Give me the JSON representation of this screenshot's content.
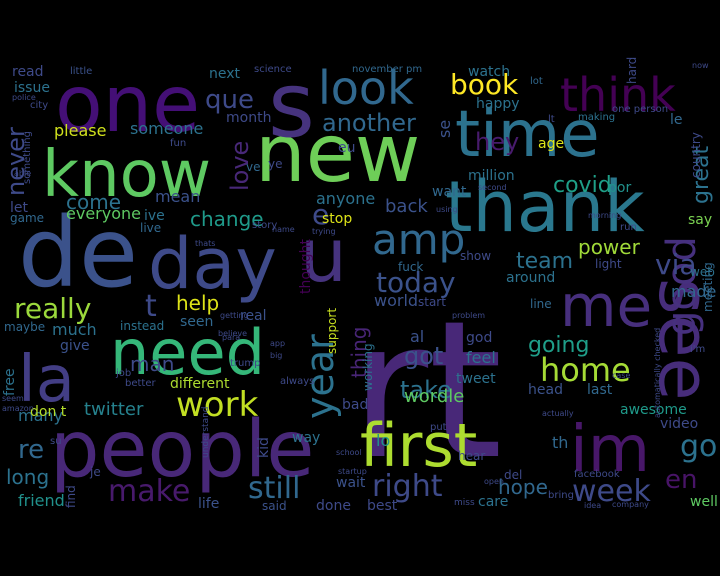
{
  "image": {
    "kind": "word cloud",
    "background": "#000000",
    "palette": [
      "#440154",
      "#472f7d",
      "#3b528b",
      "#2c728e",
      "#21918c",
      "#28ae80",
      "#5ec962",
      "#addc30",
      "#fde725"
    ]
  },
  "words": [
    {
      "text": "rt",
      "color": "#482878"
    },
    {
      "text": "new",
      "color": "#6ece58"
    },
    {
      "text": "de",
      "color": "#3b528b"
    },
    {
      "text": "people",
      "color": "#482878"
    },
    {
      "text": "time",
      "color": "#2c728e"
    },
    {
      "text": "one",
      "color": "#440f76"
    },
    {
      "text": "thank",
      "color": "#2a788e"
    },
    {
      "text": "know",
      "color": "#5ec962"
    },
    {
      "text": "day",
      "color": "#3e4a89"
    },
    {
      "text": "need",
      "color": "#35b779"
    },
    {
      "text": "see",
      "color": "#472d7b"
    },
    {
      "text": "first",
      "color": "#addc30"
    },
    {
      "text": "im",
      "color": "#481769"
    },
    {
      "text": "la",
      "color": "#433e85"
    },
    {
      "text": "me",
      "color": "#472f7d"
    },
    {
      "text": "s",
      "color": "#46337e"
    },
    {
      "text": "u",
      "color": "#46337e"
    },
    {
      "text": "look",
      "color": "#31688e"
    },
    {
      "text": "think",
      "color": "#440154"
    },
    {
      "text": "amp",
      "color": "#31688e"
    },
    {
      "text": "good",
      "color": "#46307e"
    },
    {
      "text": "year",
      "color": "#2c728e"
    },
    {
      "text": "work",
      "color": "#c2df23"
    },
    {
      "text": "make",
      "color": "#481a6c"
    },
    {
      "text": "week",
      "color": "#3e4a89"
    },
    {
      "text": "right",
      "color": "#3e4a89"
    },
    {
      "text": "home",
      "color": "#a5db36"
    },
    {
      "text": "today",
      "color": "#3b528b"
    },
    {
      "text": "really",
      "color": "#9bd93c"
    },
    {
      "text": "still",
      "color": "#31688e"
    },
    {
      "text": "book",
      "color": "#fde725"
    },
    {
      "text": "via",
      "color": "#3e4a89"
    },
    {
      "text": "go",
      "color": "#2c728e"
    },
    {
      "text": "en",
      "color": "#481467"
    },
    {
      "text": "que",
      "color": "#3e4a89"
    },
    {
      "text": "another",
      "color": "#31688e"
    },
    {
      "text": "never",
      "color": "#3e4a89"
    },
    {
      "text": "love",
      "color": "#482878"
    },
    {
      "text": "take",
      "color": "#2c728e"
    },
    {
      "text": "got",
      "color": "#3b528b"
    },
    {
      "text": "going",
      "color": "#1f9e89"
    },
    {
      "text": "team",
      "color": "#2c728e"
    },
    {
      "text": "covid",
      "color": "#1fa088"
    },
    {
      "text": "hey",
      "color": "#481b6d"
    },
    {
      "text": "great",
      "color": "#2c728e"
    },
    {
      "text": "change",
      "color": "#1f9a8a"
    },
    {
      "text": "come",
      "color": "#2c728e"
    },
    {
      "text": "thing",
      "color": "#482576"
    },
    {
      "text": "man",
      "color": "#3e4a89"
    },
    {
      "text": "help",
      "color": "#dde318"
    },
    {
      "text": "power",
      "color": "#a0da39"
    },
    {
      "text": "twitter",
      "color": "#26828e"
    },
    {
      "text": "hope",
      "color": "#31688e"
    },
    {
      "text": "t",
      "color": "#3e4a89"
    },
    {
      "text": "e",
      "color": "#3e4a89"
    },
    {
      "text": "please",
      "color": "#d0e11c"
    },
    {
      "text": "someone",
      "color": "#2c728e"
    },
    {
      "text": "next",
      "color": "#2c728e"
    },
    {
      "text": "month",
      "color": "#3e4a89"
    },
    {
      "text": "mean",
      "color": "#3b528b"
    },
    {
      "text": "everyone",
      "color": "#5ec962"
    },
    {
      "text": "ive",
      "color": "#2c728e"
    },
    {
      "text": "back",
      "color": "#3b528b"
    },
    {
      "text": "anyone",
      "color": "#2c728e"
    },
    {
      "text": "world",
      "color": "#3b528b"
    },
    {
      "text": "tweet",
      "color": "#2c728e"
    },
    {
      "text": "wordle",
      "color": "#5ec962"
    },
    {
      "text": "feel",
      "color": "#2c728e"
    },
    {
      "text": "around",
      "color": "#2c728e"
    },
    {
      "text": "made",
      "color": "#31688e"
    },
    {
      "text": "say",
      "color": "#7ad151"
    },
    {
      "text": "last",
      "color": "#31688e"
    },
    {
      "text": "head",
      "color": "#3b528b"
    },
    {
      "text": "awesome",
      "color": "#1f9a8a"
    },
    {
      "text": "video",
      "color": "#3e4a89"
    },
    {
      "text": "re",
      "color": "#31688e"
    },
    {
      "text": "long",
      "color": "#2c728e"
    },
    {
      "text": "friend",
      "color": "#21918c"
    },
    {
      "text": "many",
      "color": "#2c728e"
    },
    {
      "text": "free",
      "color": "#2c728e"
    },
    {
      "text": "don t",
      "color": "#b5de2b"
    },
    {
      "text": "give",
      "color": "#3b528b"
    },
    {
      "text": "much",
      "color": "#2c728e"
    },
    {
      "text": "maybe",
      "color": "#31688e"
    },
    {
      "text": "instead",
      "color": "#2c728e"
    },
    {
      "text": "seen",
      "color": "#31688e"
    },
    {
      "text": "real",
      "color": "#3b528b"
    },
    {
      "text": "different",
      "color": "#addc30"
    },
    {
      "text": "let",
      "color": "#3e4a89"
    },
    {
      "text": "game",
      "color": "#31688e"
    },
    {
      "text": "live",
      "color": "#31688e"
    },
    {
      "text": "lo",
      "color": "#21918c"
    },
    {
      "text": "th",
      "color": "#31688e"
    },
    {
      "text": "al",
      "color": "#3b528b"
    },
    {
      "text": "god",
      "color": "#3e4a89"
    },
    {
      "text": "fuck",
      "color": "#31688e"
    },
    {
      "text": "show",
      "color": "#3e4a89"
    },
    {
      "text": "light",
      "color": "#3e4a89"
    },
    {
      "text": "line",
      "color": "#31688e"
    },
    {
      "text": "start",
      "color": "#3e4a89"
    },
    {
      "text": "thought",
      "color": "#440154"
    },
    {
      "text": "support",
      "color": "#c8e020"
    },
    {
      "text": "working",
      "color": "#2c728e"
    },
    {
      "text": "bad",
      "color": "#3e4a89"
    },
    {
      "text": "stop",
      "color": "#dde318"
    },
    {
      "text": "wait",
      "color": "#3b528b"
    },
    {
      "text": "done",
      "color": "#3e4a89"
    },
    {
      "text": "best",
      "color": "#3e4a89"
    },
    {
      "text": "care",
      "color": "#2c728e"
    },
    {
      "text": "well",
      "color": "#5ec962"
    },
    {
      "text": "kid",
      "color": "#3e4a89"
    },
    {
      "text": "way",
      "color": "#2c728e"
    },
    {
      "text": "life",
      "color": "#3b528b"
    },
    {
      "text": "said",
      "color": "#3b528b"
    },
    {
      "text": "find",
      "color": "#3e4a89"
    },
    {
      "text": "je",
      "color": "#3e4a89"
    },
    {
      "text": "watch",
      "color": "#2c728e"
    },
    {
      "text": "happy",
      "color": "#2c728e"
    },
    {
      "text": "age",
      "color": "#dde318"
    },
    {
      "text": "million",
      "color": "#2c728e"
    },
    {
      "text": "want",
      "color": "#31688e"
    },
    {
      "text": "por",
      "color": "#21918c"
    },
    {
      "text": "eu",
      "color": "#3e4a89"
    },
    {
      "text": "se",
      "color": "#3b528b"
    },
    {
      "text": "le",
      "color": "#31688e"
    },
    {
      "text": "country",
      "color": "#3e4a89"
    },
    {
      "text": "meeting",
      "color": "#31688e"
    },
    {
      "text": "web",
      "color": "#2c728e"
    },
    {
      "text": "hard",
      "color": "#3e4a89"
    },
    {
      "text": "read",
      "color": "#3e4a89"
    },
    {
      "text": "issue",
      "color": "#2c728e"
    },
    {
      "text": "little",
      "color": "#3b528b"
    },
    {
      "text": "science",
      "color": "#3e4a89"
    },
    {
      "text": "november pm",
      "color": "#31688e"
    },
    {
      "text": "one person",
      "color": "#3e4a89"
    },
    {
      "text": "making",
      "color": "#2c728e"
    },
    {
      "text": "lt",
      "color": "#3e4a89"
    },
    {
      "text": "lot",
      "color": "#31688e"
    },
    {
      "text": "city",
      "color": "#3e4a89"
    },
    {
      "text": "something",
      "color": "#3e4a89"
    },
    {
      "text": "able",
      "color": "#3e4a89"
    },
    {
      "text": "fun",
      "color": "#3e4a89"
    },
    {
      "text": "story",
      "color": "#3e4a89"
    },
    {
      "text": "ve",
      "color": "#31688e"
    },
    {
      "text": "su",
      "color": "#3e4a89"
    },
    {
      "text": "better",
      "color": "#3e4a89"
    },
    {
      "text": "job",
      "color": "#3e4a89"
    },
    {
      "text": "getting",
      "color": "#3e4a89"
    },
    {
      "text": "believe",
      "color": "#3e4a89"
    },
    {
      "text": "always",
      "color": "#3e4a89"
    },
    {
      "text": "trump",
      "color": "#3e4a89"
    },
    {
      "text": "understand",
      "color": "#3e4a89"
    },
    {
      "text": "school",
      "color": "#3e4a89"
    },
    {
      "text": "startup",
      "color": "#3e4a89"
    },
    {
      "text": "put",
      "color": "#3e4a89"
    },
    {
      "text": "hear",
      "color": "#3e4a89"
    },
    {
      "text": "del",
      "color": "#3e4a89"
    },
    {
      "text": "open",
      "color": "#3e4a89"
    },
    {
      "text": "miss",
      "color": "#3e4a89"
    },
    {
      "text": "bring",
      "color": "#3e4a89"
    },
    {
      "text": "facebook",
      "color": "#3e4a89"
    },
    {
      "text": "company",
      "color": "#3e4a89"
    },
    {
      "text": "idea",
      "color": "#3e4a89"
    },
    {
      "text": "amazon",
      "color": "#3e4a89"
    },
    {
      "text": "app",
      "color": "#3e4a89"
    },
    {
      "text": "big",
      "color": "#3e4a89"
    },
    {
      "text": "actually",
      "color": "#3e4a89"
    },
    {
      "text": "case",
      "color": "#3e4a89"
    },
    {
      "text": "automatically checked",
      "color": "#3e4a89"
    },
    {
      "text": "para",
      "color": "#3e4a89"
    },
    {
      "text": "problem",
      "color": "#3e4a89"
    },
    {
      "text": "using",
      "color": "#3e4a89"
    },
    {
      "text": "second",
      "color": "#3e4a89"
    },
    {
      "text": "morning",
      "color": "#3e4a89"
    },
    {
      "text": "run",
      "color": "#3e4a89"
    },
    {
      "text": "now",
      "color": "#3e4a89"
    },
    {
      "text": "thats",
      "color": "#3e4a89"
    },
    {
      "text": "trying",
      "color": "#3e4a89"
    },
    {
      "text": "name",
      "color": "#3e4a89"
    },
    {
      "text": "police",
      "color": "#3e4a89"
    },
    {
      "text": "seem",
      "color": "#3e4a89"
    },
    {
      "text": "ye",
      "color": "#3e4a89"
    },
    {
      "text": "i'm",
      "color": "#3e4a89"
    }
  ]
}
